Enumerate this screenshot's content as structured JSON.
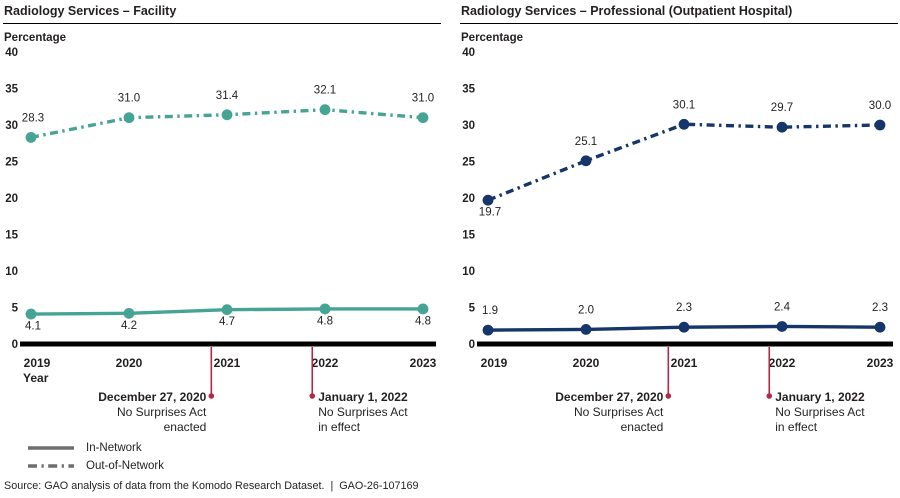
{
  "page": {
    "source_line": "Source: GAO analysis of data from the Komodo Research Dataset.  |  GAO-26-107169"
  },
  "legend": {
    "line_color": "#6d6e71",
    "items": [
      {
        "label": "In-Network",
        "style": "solid"
      },
      {
        "label": "Out-of-Network",
        "style": "dashdot"
      }
    ]
  },
  "colors": {
    "facility_series": "#46a495",
    "professional_series": "#16356b",
    "annotation_red": "#b32845",
    "axis_black": "#000000",
    "text": "#231f20"
  },
  "chart_data": [
    {
      "type": "line",
      "title": "Radiology Services – Facility",
      "ylabel": "Percentage",
      "xlabel": "Year",
      "show_xlabel": true,
      "categories": [
        "2019",
        "2020",
        "2021",
        "2022",
        "2023"
      ],
      "ylim": [
        0,
        40
      ],
      "ytick_step": 5,
      "grid": false,
      "color": "#46a495",
      "series": [
        {
          "name": "Out-of-Network",
          "style": "dashdot",
          "values": [
            28.3,
            31.0,
            31.4,
            32.1,
            31.0
          ],
          "label_pos": [
            "above",
            "above",
            "above",
            "above",
            "above"
          ]
        },
        {
          "name": "In-Network",
          "style": "solid",
          "values": [
            4.1,
            4.2,
            4.7,
            4.8,
            4.8
          ],
          "label_pos": [
            "below",
            "below",
            "below",
            "below",
            "below"
          ]
        }
      ],
      "annotations": [
        {
          "x_index": 1.84,
          "align": "right",
          "lines": [
            "December 27, 2020",
            "No Surprises Act",
            "enacted"
          ]
        },
        {
          "x_index": 2.87,
          "align": "left",
          "lines": [
            "January 1, 2022",
            "No Surprises Act",
            "in effect"
          ]
        }
      ]
    },
    {
      "type": "line",
      "title": "Radiology Services – Professional (Outpatient Hospital)",
      "ylabel": "Percentage",
      "xlabel": "",
      "show_xlabel": false,
      "categories": [
        "2019",
        "2020",
        "2021",
        "2022",
        "2023"
      ],
      "ylim": [
        0,
        40
      ],
      "ytick_step": 5,
      "grid": false,
      "color": "#16356b",
      "series": [
        {
          "name": "Out-of-Network",
          "style": "dashdot",
          "values": [
            19.7,
            25.1,
            30.1,
            29.7,
            30.0
          ],
          "label_pos": [
            "below",
            "above",
            "above",
            "above",
            "above"
          ]
        },
        {
          "name": "In-Network",
          "style": "solid",
          "values": [
            1.9,
            2.0,
            2.3,
            2.4,
            2.3
          ],
          "label_pos": [
            "above",
            "above",
            "above",
            "above",
            "above"
          ]
        }
      ],
      "annotations": [
        {
          "x_index": 1.84,
          "align": "right",
          "lines": [
            "December 27, 2020",
            "No Surprises Act",
            "enacted"
          ]
        },
        {
          "x_index": 2.87,
          "align": "left",
          "lines": [
            "January 1, 2022",
            "No Surprises Act",
            "in effect"
          ]
        }
      ]
    }
  ]
}
